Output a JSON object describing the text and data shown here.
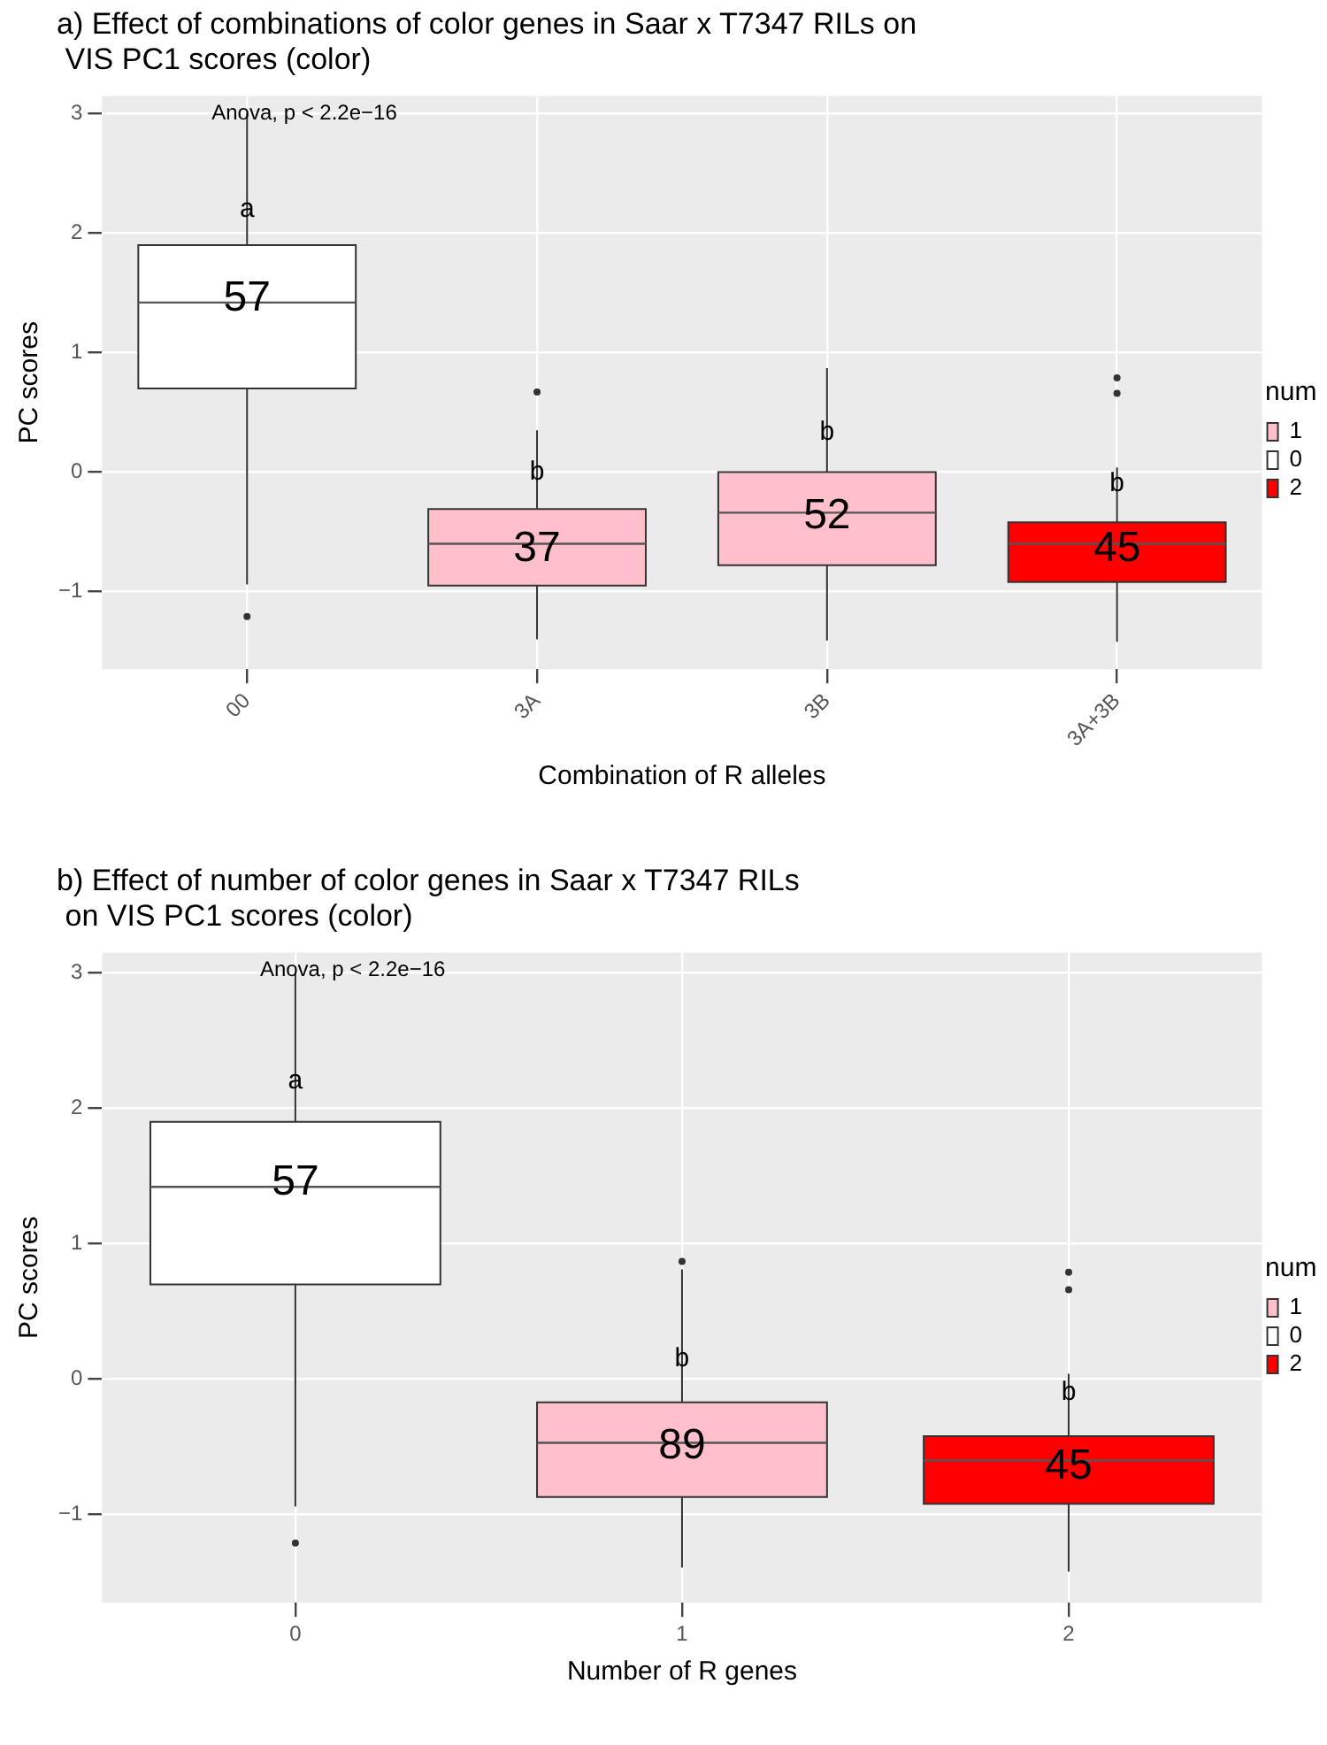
{
  "chart_data": [
    {
      "type": "box",
      "title": "a) Effect of combinations of color genes in Saar x T7347 RILs on\n VIS PC1 scores (color)",
      "xlabel": "Combination of R alleles",
      "ylabel": "PC scores",
      "legend_title": "num",
      "legend": "right",
      "grid": true,
      "categories": [
        "00",
        "3A",
        "3B",
        "3A+3B"
      ],
      "series": [
        {
          "name": "1",
          "color": "#ffc0cb",
          "boxes": [
            null,
            {
              "low": -1.4,
              "q1": -0.95,
              "median": -0.6,
              "q3": -0.31,
              "high": 0.35,
              "outliers": [
                0.67
              ]
            },
            {
              "low": -1.41,
              "q1": -0.78,
              "median": -0.34,
              "q3": 0.0,
              "high": 0.87
            },
            null
          ]
        },
        {
          "name": "0",
          "color": "#ffffff",
          "boxes": [
            {
              "low": -0.94,
              "q1": 0.7,
              "median": 1.42,
              "q3": 1.9,
              "high": 3.0,
              "outliers": [
                -1.21
              ]
            },
            null,
            null,
            null
          ]
        },
        {
          "name": "2",
          "color": "#ff0000",
          "boxes": [
            null,
            null,
            null,
            {
              "low": -1.42,
              "q1": -0.92,
              "median": -0.6,
              "q3": -0.42,
              "high": 0.04,
              "outliers": [
                0.66,
                0.79
              ]
            }
          ]
        }
      ],
      "ylim": [
        -1.65,
        3.15
      ],
      "yticks": [
        {
          "value": -1,
          "label": "−1"
        },
        0,
        1,
        2,
        3
      ],
      "annotations": [
        "Anova, p < 2.2e−16",
        {
          "text": "a",
          "x": "00",
          "y": 2.2
        },
        {
          "text": "b",
          "x": "3A",
          "y": 0.0
        },
        {
          "text": "b",
          "x": "3B",
          "y": 0.33
        },
        {
          "text": "b",
          "x": "3A+3B",
          "y": -0.1
        },
        {
          "text": "57",
          "x": "00",
          "y": 1.45
        },
        {
          "text": "37",
          "x": "3A",
          "y": -0.65
        },
        {
          "text": "52",
          "x": "3B",
          "y": -0.37
        },
        {
          "text": "45",
          "x": "3A+3B",
          "y": -0.65
        }
      ]
    },
    {
      "type": "box",
      "title": "b) Effect of number of color genes in Saar x T7347 RILs\n on VIS PC1 scores (color)",
      "xlabel": "Number of R genes",
      "ylabel": "PC scores",
      "legend_title": "num",
      "legend": "right",
      "grid": true,
      "categories": [
        "0",
        "1",
        "2"
      ],
      "series": [
        {
          "name": "1",
          "color": "#ffc0cb",
          "boxes": [
            null,
            {
              "low": -1.39,
              "q1": -0.87,
              "median": -0.47,
              "q3": -0.17,
              "high": 0.81,
              "outliers": [
                0.87
              ]
            },
            null
          ]
        },
        {
          "name": "0",
          "color": "#ffffff",
          "boxes": [
            {
              "low": -0.94,
              "q1": 0.7,
              "median": 1.42,
              "q3": 1.9,
              "high": 3.0,
              "outliers": [
                -1.21
              ]
            },
            null,
            null
          ]
        },
        {
          "name": "2",
          "color": "#ff0000",
          "boxes": [
            null,
            null,
            {
              "low": -1.42,
              "q1": -0.92,
              "median": -0.6,
              "q3": -0.42,
              "high": 0.04,
              "outliers": [
                0.66,
                0.79
              ]
            }
          ]
        }
      ],
      "ylim": [
        -1.65,
        3.15
      ],
      "yticks": [
        {
          "value": -1,
          "label": "−1"
        },
        0,
        1,
        2,
        3
      ],
      "annotations": [
        "Anova, p < 2.2e−16",
        {
          "text": "a",
          "x": "0",
          "y": 2.2
        },
        {
          "text": "b",
          "x": "1",
          "y": 0.15
        },
        {
          "text": "b",
          "x": "2",
          "y": -0.1
        },
        {
          "text": "57",
          "x": "0",
          "y": 1.45
        },
        {
          "text": "89",
          "x": "1",
          "y": -0.5
        },
        {
          "text": "45",
          "x": "2",
          "y": -0.65
        }
      ]
    }
  ]
}
